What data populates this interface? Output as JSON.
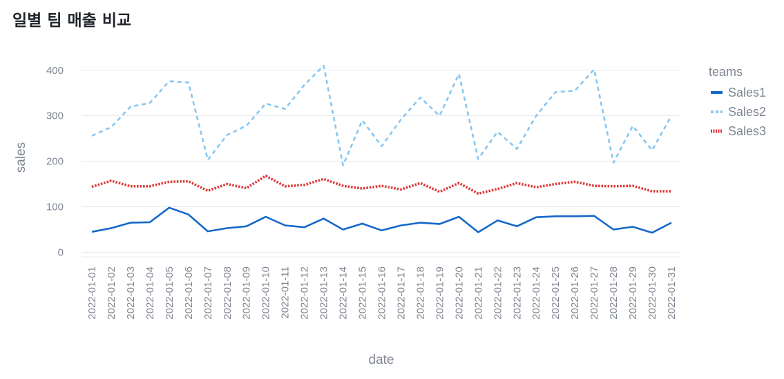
{
  "chart_data": {
    "type": "line",
    "title": "일별 팀 매출 비교",
    "xlabel": "date",
    "ylabel": "sales",
    "ylim": [
      -10,
      430
    ],
    "yticks": [
      0,
      100,
      200,
      300,
      400
    ],
    "grid": true,
    "legend_title": "teams",
    "legend_position": "right",
    "categories": [
      "2022-01-01",
      "2022-01-02",
      "2022-01-03",
      "2022-01-04",
      "2022-01-05",
      "2022-01-06",
      "2022-01-07",
      "2022-01-08",
      "2022-01-09",
      "2022-01-10",
      "2022-01-11",
      "2022-01-12",
      "2022-01-13",
      "2022-01-14",
      "2022-01-15",
      "2022-01-16",
      "2022-01-17",
      "2022-01-18",
      "2022-01-19",
      "2022-01-20",
      "2022-01-21",
      "2022-01-22",
      "2022-01-23",
      "2022-01-24",
      "2022-01-25",
      "2022-01-26",
      "2022-01-27",
      "2022-01-28",
      "2022-01-29",
      "2022-01-30",
      "2022-01-31"
    ],
    "series": [
      {
        "name": "Sales1",
        "color": "#1467c8",
        "dash": "solid",
        "values": [
          45,
          53,
          65,
          66,
          98,
          83,
          46,
          53,
          57,
          78,
          59,
          55,
          74,
          50,
          63,
          48,
          59,
          65,
          62,
          78,
          44,
          70,
          57,
          77,
          79,
          79,
          80,
          50,
          56,
          43,
          65
        ]
      },
      {
        "name": "Sales2",
        "color": "#85c7f2",
        "dash": "dashed",
        "values": [
          256,
          275,
          320,
          328,
          376,
          373,
          203,
          258,
          278,
          327,
          315,
          368,
          410,
          191,
          290,
          233,
          292,
          340,
          300,
          392,
          205,
          265,
          227,
          300,
          352,
          355,
          402,
          197,
          278,
          224,
          300
        ]
      },
      {
        "name": "Sales3",
        "color": "#de3737",
        "dash": "dotted",
        "values": [
          144,
          157,
          145,
          145,
          155,
          156,
          135,
          150,
          141,
          168,
          145,
          148,
          161,
          146,
          140,
          146,
          138,
          152,
          133,
          152,
          129,
          139,
          152,
          143,
          150,
          155,
          146,
          145,
          146,
          134,
          134
        ]
      }
    ]
  }
}
